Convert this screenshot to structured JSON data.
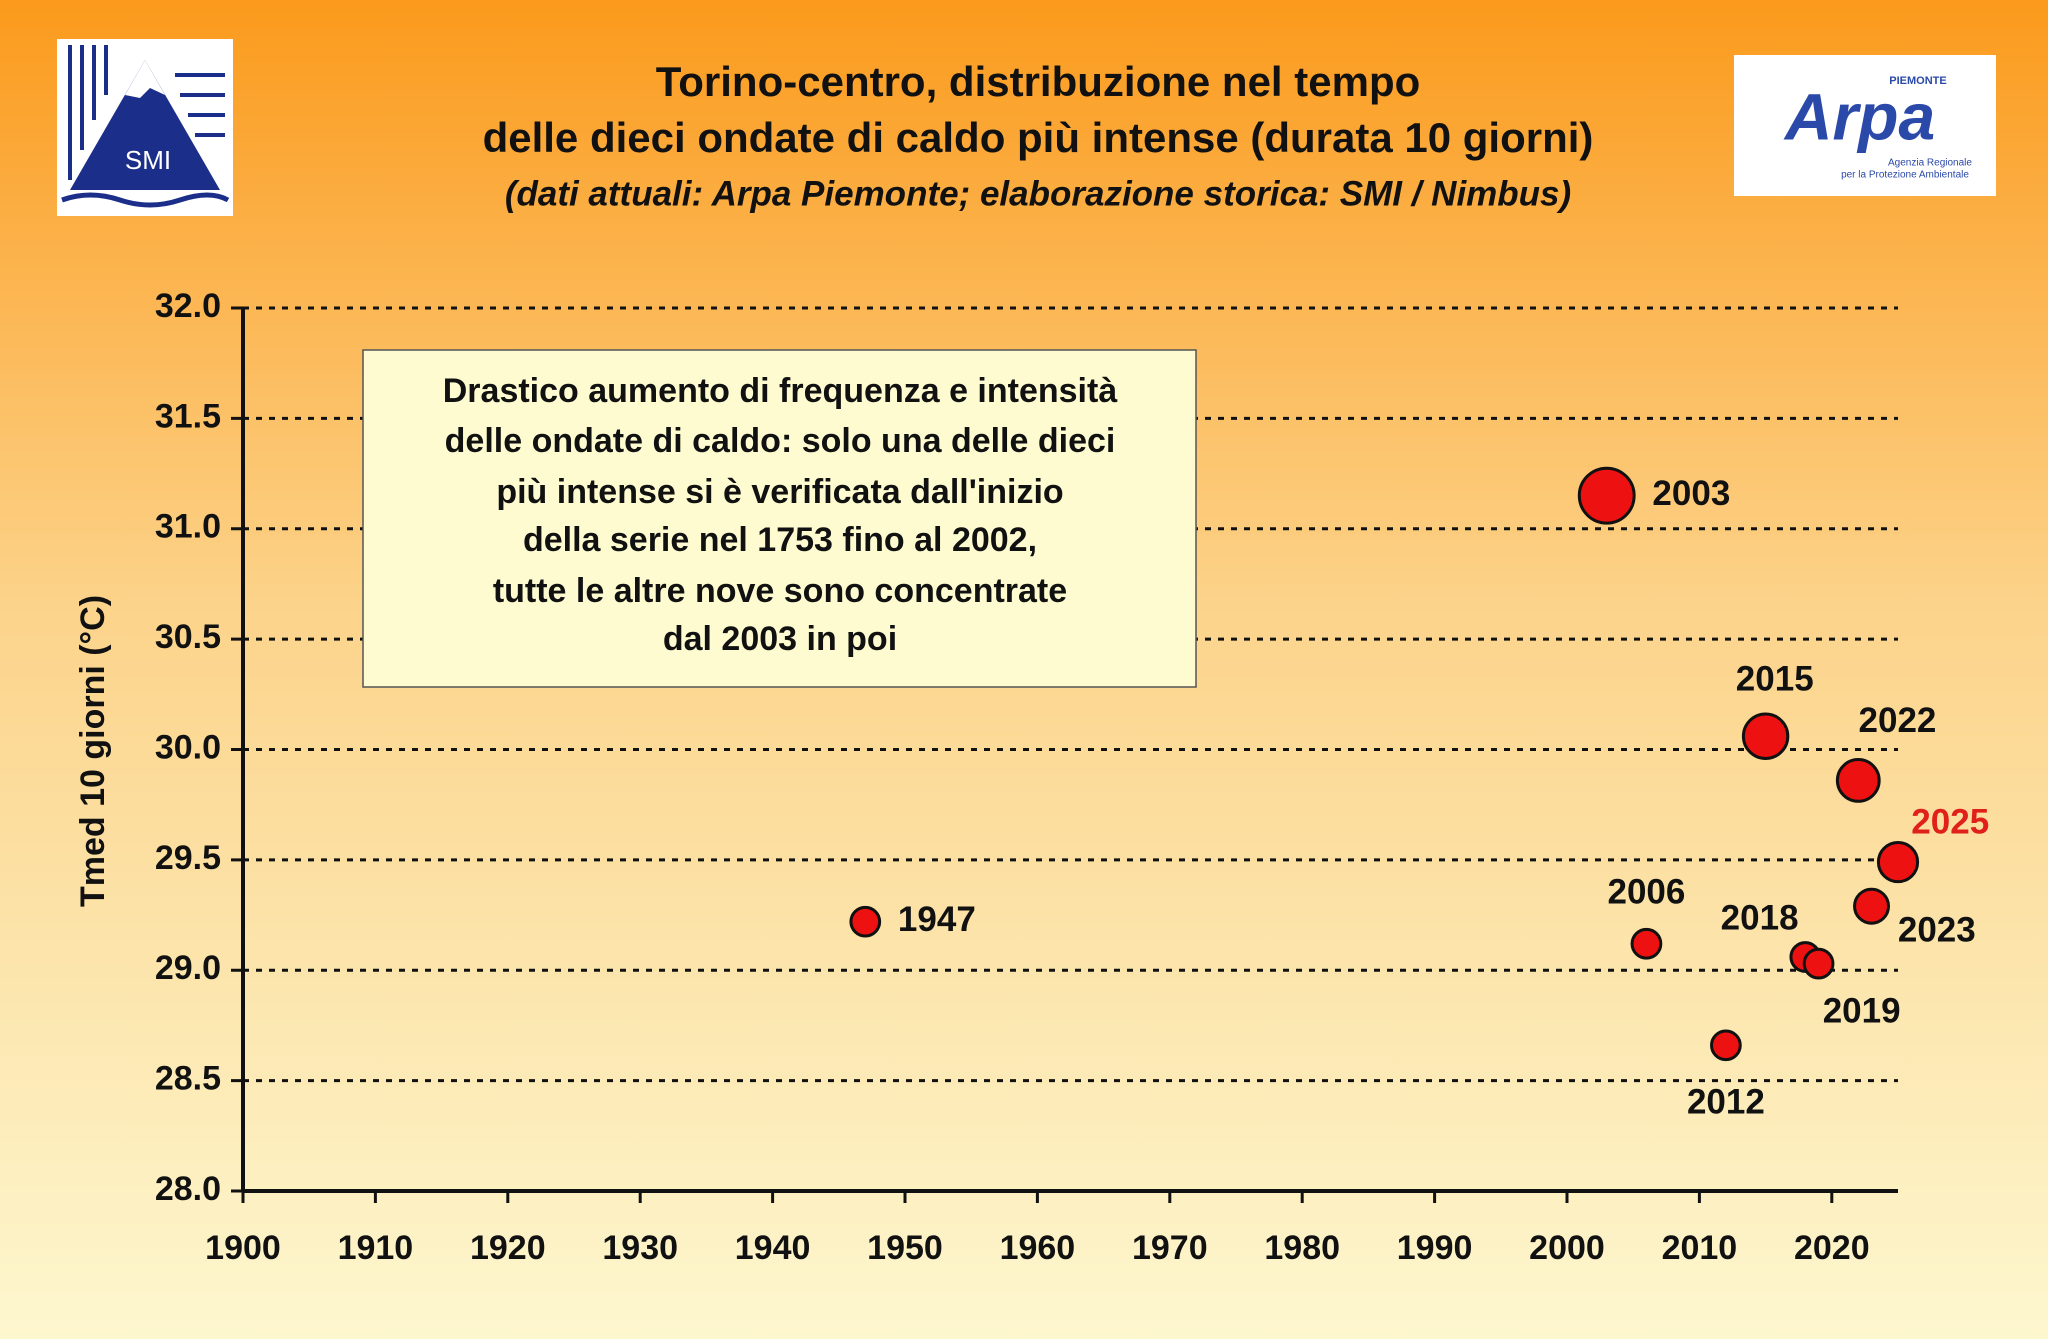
{
  "logos": {
    "smi": {
      "text": "SMI"
    },
    "arpa": {
      "name": "Arpa",
      "region": "PIEMONTE",
      "agency_line1": "Agenzia Regionale",
      "agency_line2": "per la Protezione Ambientale"
    }
  },
  "chart_data": {
    "type": "scatter",
    "title_line1": "Torino-centro, distribuzione nel tempo",
    "title_line2": "delle dieci ondate di caldo più intense (durata 10 giorni)",
    "subtitle": "(dati attuali: Arpa Piemonte; elaborazione storica: SMI / Nimbus)",
    "y_label": "Tmed 10 giorni (°C)",
    "annotation": [
      "Drastico aumento di frequenza e intensità",
      "delle ondate di caldo: solo una delle dieci",
      "più intense si è verificata dall'inizio",
      "della serie nel 1753 fino al 2002,",
      "tutte le altre nove sono concentrate",
      "dal 2003 in poi"
    ],
    "x": [
      1947,
      2003,
      2006,
      2012,
      2015,
      2018,
      2019,
      2022,
      2023,
      2025
    ],
    "values": [
      29.22,
      31.15,
      29.12,
      28.66,
      30.06,
      29.06,
      29.03,
      29.86,
      29.29,
      29.49
    ],
    "sizes": [
      1.1,
      2.1,
      1.1,
      1.1,
      1.7,
      1.1,
      1.1,
      1.6,
      1.3,
      1.5
    ],
    "color": "#ee1111",
    "label_colors": [
      "#111111",
      "#111111",
      "#111111",
      "#111111",
      "#111111",
      "#111111",
      "#111111",
      "#111111",
      "#111111",
      "#e0201b"
    ],
    "xlim": [
      1900,
      2025
    ],
    "xticks": [
      1900,
      1910,
      1920,
      1930,
      1940,
      1950,
      1960,
      1970,
      1980,
      1990,
      2000,
      2010,
      2020
    ],
    "ylim": [
      28,
      32
    ],
    "yticks": [
      {
        "value": 28,
        "label": "28.0"
      },
      28.5,
      {
        "value": 29,
        "label": "29.0"
      },
      29.5,
      {
        "value": 30,
        "label": "30.0"
      },
      30.5,
      {
        "value": 31,
        "label": "31.0"
      },
      31.5,
      {
        "value": 32,
        "label": "32.0"
      }
    ],
    "grid": true
  }
}
